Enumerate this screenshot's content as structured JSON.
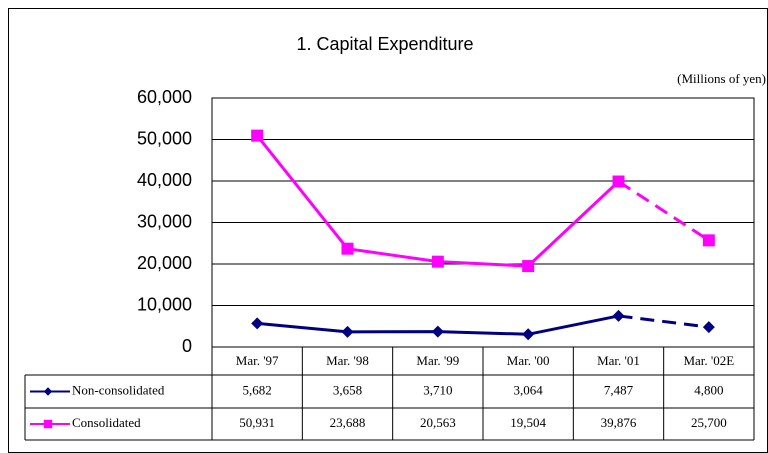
{
  "chart_data": {
    "type": "line",
    "title": "1. Capital Expenditure",
    "subtitle": "(Millions of yen)",
    "categories": [
      "Mar. '97",
      "Mar. '98",
      "Mar. '99",
      "Mar. '00",
      "Mar. '01",
      "Mar. '02E"
    ],
    "series": [
      {
        "name": "Non-consolidated",
        "color": "#000080",
        "marker": "diamond",
        "values": [
          5682,
          3658,
          3710,
          3064,
          7487,
          4800
        ],
        "value_labels": [
          "5,682",
          "3,658",
          "3,710",
          "3,064",
          "7,487",
          "4,800"
        ]
      },
      {
        "name": "Consolidated",
        "color": "#ff00ff",
        "marker": "square",
        "values": [
          50931,
          23688,
          20563,
          19504,
          39876,
          25700
        ],
        "value_labels": [
          "50,931",
          "23,688",
          "20,563",
          "19,504",
          "39,876",
          "25,700"
        ]
      }
    ],
    "ylim": [
      0,
      60000
    ],
    "yticks": [
      0,
      {
        "value": 10000,
        "label": "10,000"
      },
      {
        "value": 20000,
        "label": "20,000"
      },
      {
        "value": 30000,
        "label": "30,000"
      },
      {
        "value": 40000,
        "label": "40,000"
      },
      {
        "value": 50000,
        "label": "50,000"
      },
      {
        "value": 60000,
        "label": "60,000"
      }
    ],
    "grid": true
  }
}
